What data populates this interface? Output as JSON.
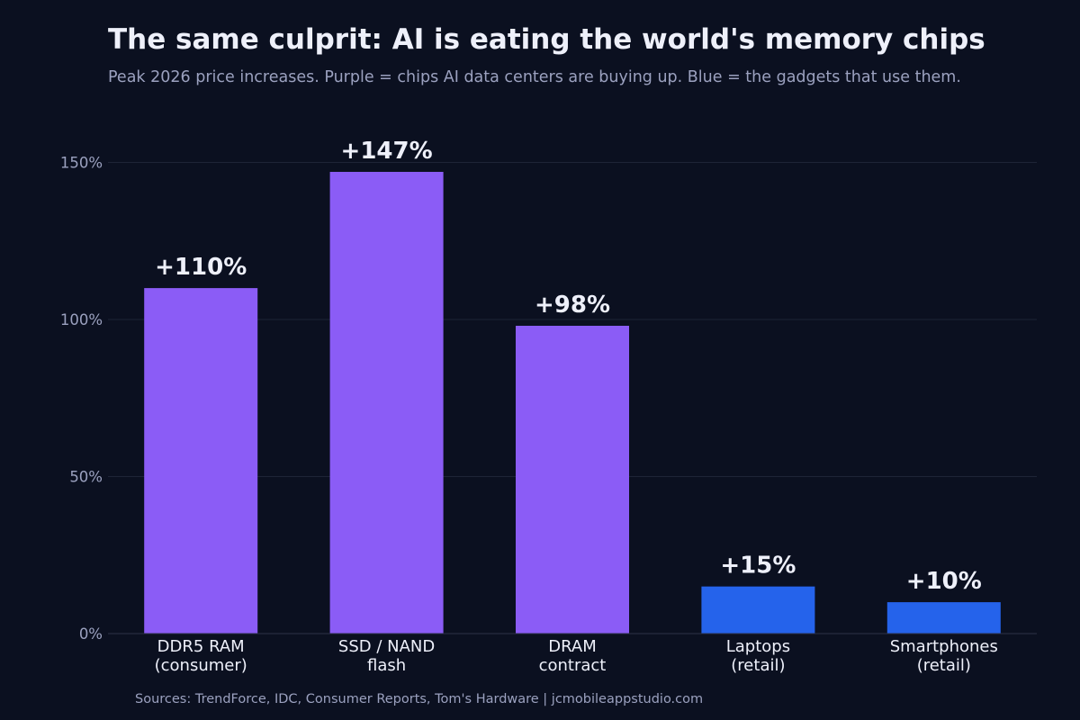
{
  "chart_data": {
    "type": "bar",
    "title": "The same culprit: AI is eating the world's memory chips",
    "subtitle": "Peak 2026 price increases. Purple = chips AI data centers are buying up. Blue = the gadgets that use them.",
    "categories": [
      [
        "DDR5 RAM",
        "(consumer)"
      ],
      [
        "SSD / NAND",
        "flash"
      ],
      [
        "DRAM",
        "contract"
      ],
      [
        "Laptops",
        "(retail)"
      ],
      [
        "Smartphones",
        "(retail)"
      ]
    ],
    "values": [
      110,
      147,
      98,
      15,
      10
    ],
    "data_labels": [
      "+110%",
      "+147%",
      "+98%",
      "+15%",
      "+10%"
    ],
    "bar_groups": [
      "chips",
      "chips",
      "chips",
      "gadgets",
      "gadgets"
    ],
    "colors": {
      "chips": "#8b5cf6",
      "gadgets": "#2563eb",
      "background": "#0b1020"
    },
    "yticks": [
      0,
      50,
      100,
      150
    ],
    "ytick_labels": [
      "0%",
      "50%",
      "100%",
      "150%"
    ],
    "ylim": [
      0,
      165
    ],
    "grid": true,
    "xlabel": "",
    "ylabel": ""
  },
  "footer": "Sources: TrendForce, IDC, Consumer Reports, Tom's Hardware  |  jcmobileappstudio.com"
}
